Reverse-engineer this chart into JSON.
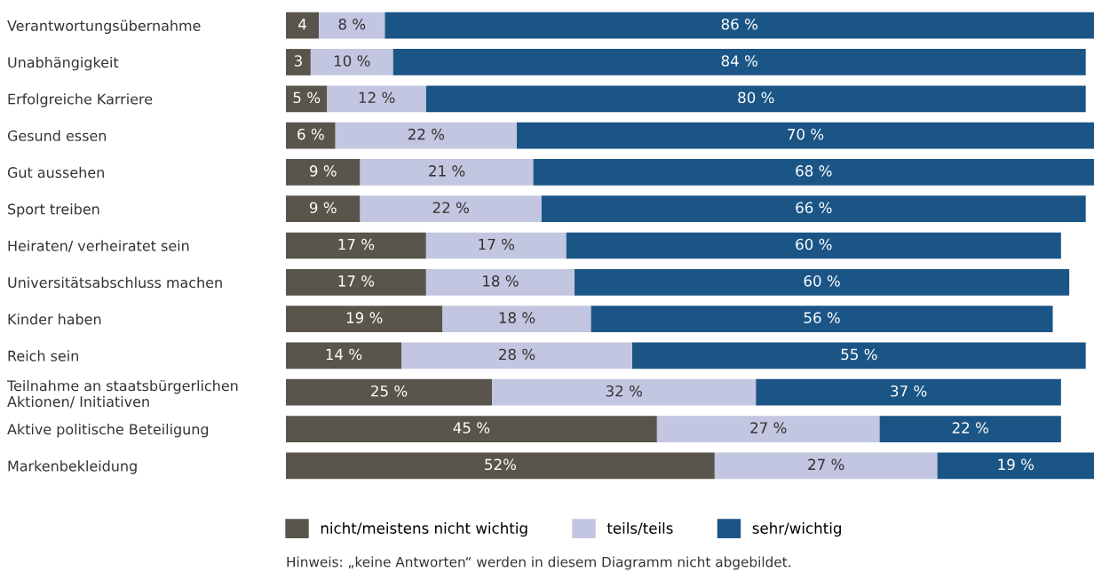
{
  "chart_data": {
    "type": "bar",
    "orientation": "horizontal",
    "stacked": true,
    "tick_labels": "y",
    "legend": "bottom",
    "grid": false,
    "categories": [
      "Verantwortungsübernahme",
      "Unabhängigkeit",
      "Erfolgreiche Karriere",
      "Gesund essen",
      "Gut aussehen",
      "Sport treiben",
      "Heiraten/ verheiratet sein",
      "Universitätsabschluss machen",
      "Kinder haben",
      "Reich sein",
      "Teilnahme an staatsbürgerlichen\nAktionen/ Initiativen",
      "Aktive politische Beteiligung",
      "Markenbekleidung"
    ],
    "series": [
      {
        "name": "nicht/meistens nicht wichtig",
        "color": "#5a554c",
        "values": [
          4,
          3,
          5,
          6,
          9,
          9,
          17,
          17,
          19,
          14,
          25,
          45,
          52
        ],
        "value_labels": [
          "4",
          "3",
          "5 %",
          "6 %",
          "9 %",
          "9 %",
          "17 %",
          "17 %",
          "19 %",
          "14 %",
          "25 %",
          "45 %",
          "52%"
        ]
      },
      {
        "name": "teils/teils",
        "color": "#c3c6e0",
        "values": [
          8,
          10,
          12,
          22,
          21,
          22,
          17,
          18,
          18,
          28,
          32,
          27,
          27
        ],
        "value_labels": [
          "8 %",
          "10 %",
          "12 %",
          "22 %",
          "21 %",
          "22 %",
          "17 %",
          "18 %",
          "18 %",
          "28 %",
          "32 %",
          "27 %",
          "27 %"
        ]
      },
      {
        "name": "sehr/wichtig",
        "color": "#1b5586",
        "values": [
          86,
          84,
          80,
          70,
          68,
          66,
          60,
          60,
          56,
          55,
          37,
          22,
          19
        ],
        "value_labels": [
          "86 %",
          "84 %",
          "80 %",
          "70 %",
          "68 %",
          "66 %",
          "60 %",
          "60 %",
          "56 %",
          "55 %",
          "37 %",
          "22 %",
          "19 %"
        ]
      }
    ],
    "annotations": [
      "Hinweis: „keine Antworten“ werden in diesem Diagramm nicht abgebildet."
    ]
  }
}
